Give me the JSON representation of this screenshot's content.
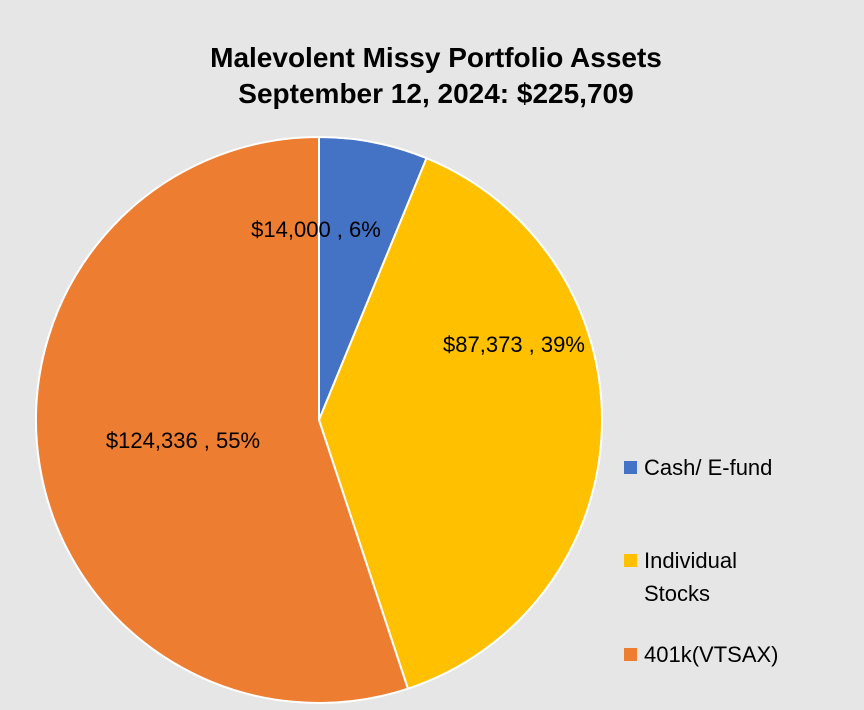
{
  "chart_data": {
    "type": "pie",
    "title": "Malevolent Missy Portfolio Assets",
    "subtitle": "September 12, 2024:  $225,709",
    "slices": [
      {
        "label": "Cash/ E-fund",
        "value": 14000,
        "percent": 6,
        "data_label": "$14,000 , 6%",
        "color": "#4472c4"
      },
      {
        "label": "Individual Stocks",
        "value": 87373,
        "percent": 39,
        "data_label": "$87,373 , 39%",
        "color": "#ffc000"
      },
      {
        "label": "401k(VTSAX)",
        "value": 124336,
        "percent": 55,
        "data_label": "$124,336 , 55%",
        "color": "#ed7d31"
      }
    ],
    "legend": {
      "placement": "right",
      "items": [
        {
          "label_lines": [
            "Cash/ E-fund"
          ],
          "color": "#4472c4"
        },
        {
          "label_lines": [
            "Individual",
            "Stocks"
          ],
          "color": "#ffc000"
        },
        {
          "label_lines": [
            "401k(VTSAX)"
          ],
          "color": "#ed7d31"
        }
      ]
    }
  }
}
